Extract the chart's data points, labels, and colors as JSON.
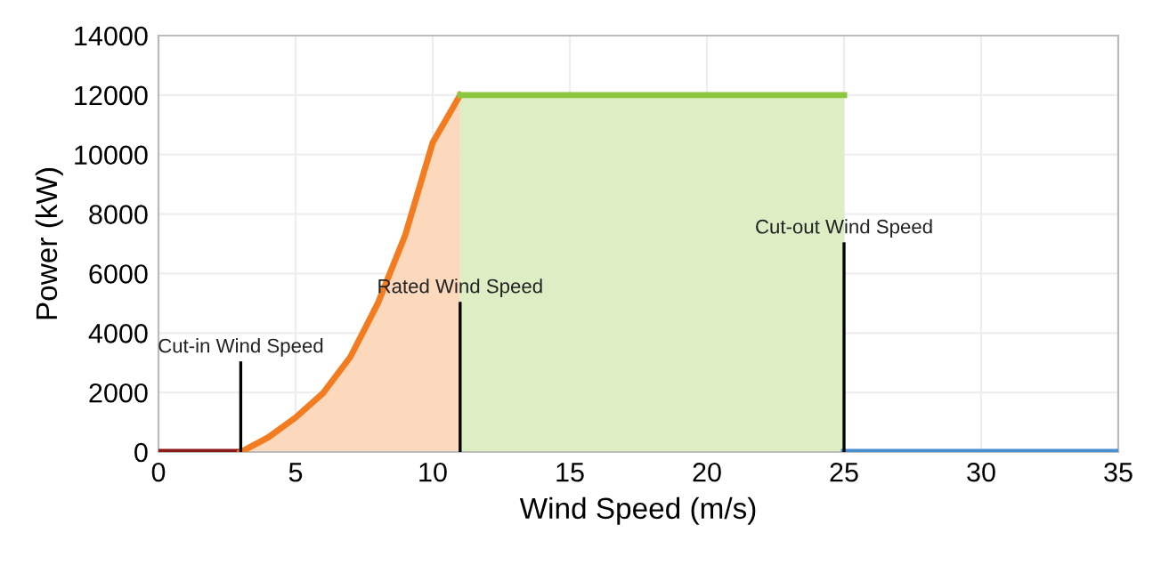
{
  "chart_data": {
    "type": "line",
    "xlabel": "Wind Speed (m/s)",
    "ylabel": "Power (kW)",
    "series": [
      {
        "color": "#8b1a1a",
        "x": [
          0,
          3
        ],
        "values": [
          0,
          0
        ]
      },
      {
        "type": "area",
        "color": "#f47c20",
        "x": [
          3,
          4,
          5,
          6,
          7,
          8,
          9,
          10,
          11
        ],
        "values": [
          0,
          490,
          1160,
          1980,
          3200,
          5000,
          7300,
          10400,
          12000
        ]
      },
      {
        "type": "area",
        "color": "#8dc63f",
        "x": [
          11,
          25
        ],
        "values": [
          12000,
          12000
        ]
      },
      {
        "color": "#4a8fd0",
        "x": [
          25,
          35
        ],
        "values": [
          0,
          0
        ]
      }
    ],
    "ref_lines": [
      {
        "axis": "x",
        "value": 3,
        "label": "Cut-in Wind Speed",
        "color": "#000000"
      },
      {
        "axis": "x",
        "value": 11,
        "label": "Rated Wind Speed",
        "color": "#000000"
      },
      {
        "axis": "x",
        "value": 25,
        "label": "Cut-out Wind Speed",
        "color": "#000000"
      }
    ],
    "xlim": [
      0,
      35
    ],
    "xticks": [
      0,
      5,
      10,
      15,
      20,
      25,
      30,
      35
    ],
    "ylim": [
      0,
      14000
    ],
    "yticks": [
      0,
      2000,
      4000,
      6000,
      8000,
      10000,
      12000,
      14000
    ],
    "grid": true,
    "legend": false
  }
}
